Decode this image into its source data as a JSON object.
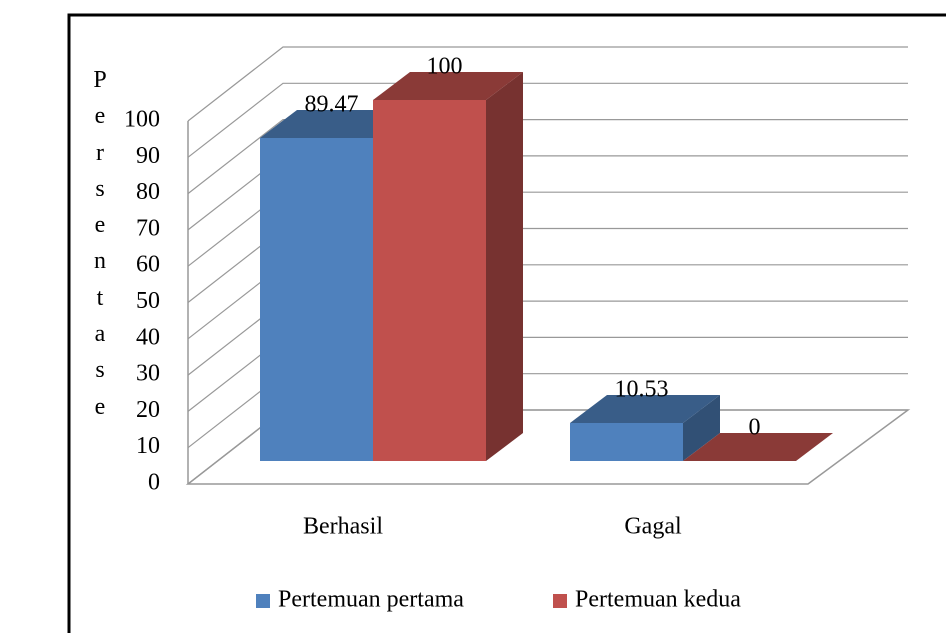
{
  "chart_data": {
    "type": "bar3d",
    "y_label": "Persentase",
    "categories": [
      "Berhasil",
      "Gagal"
    ],
    "series": [
      {
        "name": "Pertemuan pertama",
        "color": "#4f81bd",
        "values": [
          89.47,
          10.53
        ]
      },
      {
        "name": "Pertemuan kedua",
        "color": "#c0504d",
        "values": [
          100,
          0
        ]
      }
    ],
    "ylim": [
      0,
      100
    ],
    "yticks": [
      0,
      10,
      20,
      30,
      40,
      50,
      60,
      70,
      80,
      90,
      100
    ],
    "grid": true,
    "legend": "bottom"
  }
}
